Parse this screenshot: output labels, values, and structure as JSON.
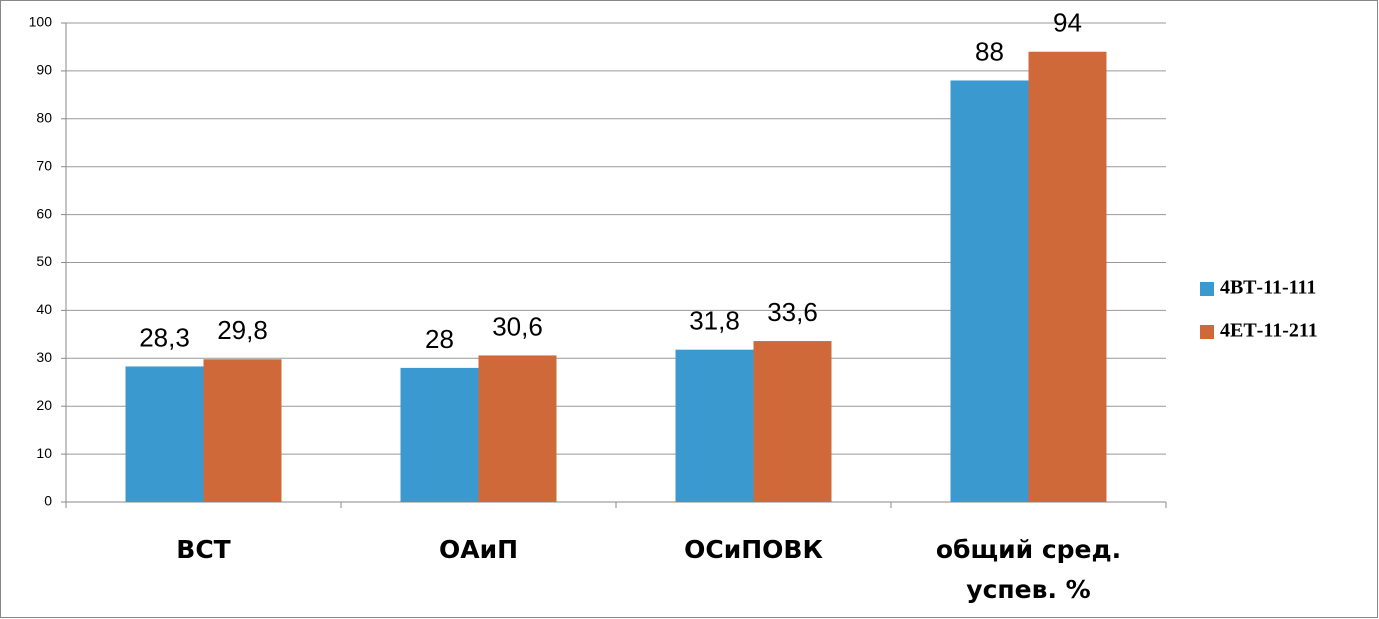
{
  "chart_data": {
    "type": "bar",
    "categories": [
      "ВСТ",
      "ОАиП",
      "ОСиПОВК",
      "общий сред. успев. %"
    ],
    "series": [
      {
        "name": "4ВТ-11-111",
        "color": "#3a9ad0",
        "values": [
          28.3,
          28,
          31.8,
          88
        ],
        "value_labels": [
          "28,3",
          "28",
          "31,8",
          "88"
        ]
      },
      {
        "name": "4ЕТ-11-211",
        "color": "#d0693a",
        "values": [
          29.8,
          30.6,
          33.6,
          94
        ],
        "value_labels": [
          "29,8",
          "30,6",
          "33,6",
          "94"
        ]
      }
    ],
    "ylim": [
      0,
      100
    ],
    "yticks": [
      0,
      10,
      20,
      30,
      40,
      50,
      60,
      70,
      80,
      90,
      100
    ],
    "grid": true,
    "legend": "right"
  }
}
